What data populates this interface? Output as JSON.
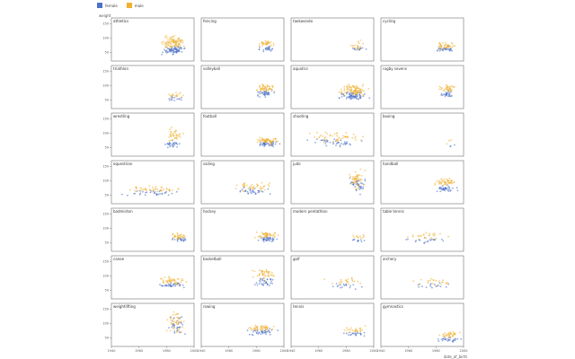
{
  "legend": [
    {
      "label": "female",
      "color": "#4c72c8"
    },
    {
      "label": "male",
      "color": "#f0b030"
    }
  ],
  "y_axis_label": "weight",
  "x_axis_label": "date_of_birth",
  "chart_data": {
    "type": "scatter",
    "title": "",
    "xlabel": "date_of_birth",
    "ylabel": "weight",
    "xlim": [
      1940,
      2000
    ],
    "ylim": [
      20,
      170
    ],
    "x_ticks": [
      "1940",
      "1960",
      "1980",
      "2000"
    ],
    "y_ticks": [
      "50",
      "100",
      "150"
    ],
    "series": [
      {
        "name": "female",
        "color": "#4c72c8"
      },
      {
        "name": "male",
        "color": "#f0b030"
      }
    ],
    "facets": [
      {
        "sport": "athletics",
        "x": [
          1975,
          1995
        ],
        "female": [
          40,
          75
        ],
        "male": [
          55,
          115
        ],
        "density": 1.0,
        "offset": 12
      },
      {
        "sport": "fencing",
        "x": [
          1978,
          1996
        ],
        "female": [
          50,
          75
        ],
        "male": [
          65,
          95
        ],
        "density": 0.3
      },
      {
        "sport": "taekwondo",
        "x": [
          1982,
          1996
        ],
        "female": [
          45,
          75
        ],
        "male": [
          55,
          95
        ],
        "density": 0.15
      },
      {
        "sport": "cycling",
        "x": [
          1976,
          1996
        ],
        "female": [
          45,
          75
        ],
        "male": [
          55,
          90
        ],
        "density": 0.4
      },
      {
        "sport": "triathlon",
        "x": [
          1978,
          1994
        ],
        "female": [
          45,
          65
        ],
        "male": [
          55,
          80
        ],
        "density": 0.15
      },
      {
        "sport": "volleyball",
        "x": [
          1978,
          1996
        ],
        "female": [
          55,
          90
        ],
        "male": [
          70,
          110
        ],
        "density": 0.5
      },
      {
        "sport": "aquatics",
        "x": [
          1972,
          1998
        ],
        "female": [
          45,
          85
        ],
        "male": [
          60,
          110
        ],
        "density": 1.0
      },
      {
        "sport": "rugby sevens",
        "x": [
          1980,
          1996
        ],
        "female": [
          55,
          85
        ],
        "male": [
          70,
          110
        ],
        "density": 0.35
      },
      {
        "sport": "wrestling",
        "x": [
          1976,
          1994
        ],
        "female": [
          45,
          80
        ],
        "male": [
          55,
          130
        ],
        "density": 0.35
      },
      {
        "sport": "football",
        "x": [
          1978,
          1998
        ],
        "female": [
          50,
          75
        ],
        "male": [
          60,
          90
        ],
        "density": 0.6
      },
      {
        "sport": "shooting",
        "x": [
          1945,
          1998
        ],
        "female": [
          45,
          90
        ],
        "male": [
          60,
          110
        ],
        "density": 0.5
      },
      {
        "sport": "boxing",
        "x": [
          1985,
          1995
        ],
        "female": [
          50,
          70
        ],
        "male": [
          50,
          90
        ],
        "density": 0.0
      },
      {
        "sport": "equestrian",
        "x": [
          1944,
          1998
        ],
        "female": [
          45,
          70
        ],
        "male": [
          55,
          85
        ],
        "density": 0.45
      },
      {
        "sport": "sailing",
        "x": [
          1960,
          1998
        ],
        "female": [
          45,
          80
        ],
        "male": [
          60,
          100
        ],
        "density": 0.4
      },
      {
        "sport": "judo",
        "x": [
          1980,
          1996
        ],
        "female": [
          45,
          130
        ],
        "male": [
          60,
          150
        ],
        "density": 0.5
      },
      {
        "sport": "handball",
        "x": [
          1976,
          1998
        ],
        "female": [
          55,
          90
        ],
        "male": [
          75,
          115
        ],
        "density": 0.5
      },
      {
        "sport": "badminton",
        "x": [
          1980,
          1998
        ],
        "female": [
          50,
          70
        ],
        "male": [
          60,
          85
        ],
        "density": 0.3
      },
      {
        "sport": "hockey",
        "x": [
          1978,
          1998
        ],
        "female": [
          50,
          75
        ],
        "male": [
          60,
          95
        ],
        "density": 0.5
      },
      {
        "sport": "modern pentathlon",
        "x": [
          1982,
          1996
        ],
        "female": [
          50,
          65
        ],
        "male": [
          60,
          80
        ],
        "density": 0.1
      },
      {
        "sport": "table tennis",
        "x": [
          1950,
          1998
        ],
        "female": [
          45,
          70
        ],
        "male": [
          55,
          90
        ],
        "density": 0.25
      },
      {
        "sport": "canoe",
        "x": [
          1970,
          1996
        ],
        "female": [
          55,
          80
        ],
        "male": [
          65,
          105
        ],
        "density": 0.45
      },
      {
        "sport": "basketball",
        "x": [
          1976,
          1996
        ],
        "female": [
          60,
          100
        ],
        "male": [
          80,
          130
        ],
        "density": 0.45
      },
      {
        "sport": "golf",
        "x": [
          1962,
          1996
        ],
        "female": [
          50,
          80
        ],
        "male": [
          60,
          100
        ],
        "density": 0.2
      },
      {
        "sport": "archery",
        "x": [
          1960,
          1998
        ],
        "female": [
          45,
          85
        ],
        "male": [
          60,
          100
        ],
        "density": 0.2
      },
      {
        "sport": "weightlifting",
        "x": [
          1978,
          1996
        ],
        "female": [
          45,
          140
        ],
        "male": [
          55,
          160
        ],
        "density": 0.45
      },
      {
        "sport": "rowing",
        "x": [
          1970,
          1998
        ],
        "female": [
          55,
          85
        ],
        "male": [
          70,
          100
        ],
        "density": 0.5
      },
      {
        "sport": "tennis",
        "x": [
          1975,
          1998
        ],
        "female": [
          55,
          75
        ],
        "male": [
          65,
          95
        ],
        "density": 0.25
      },
      {
        "sport": "gymnastics",
        "x": [
          1978,
          2000
        ],
        "female": [
          30,
          60
        ],
        "male": [
          45,
          75
        ],
        "density": 0.35
      }
    ]
  }
}
